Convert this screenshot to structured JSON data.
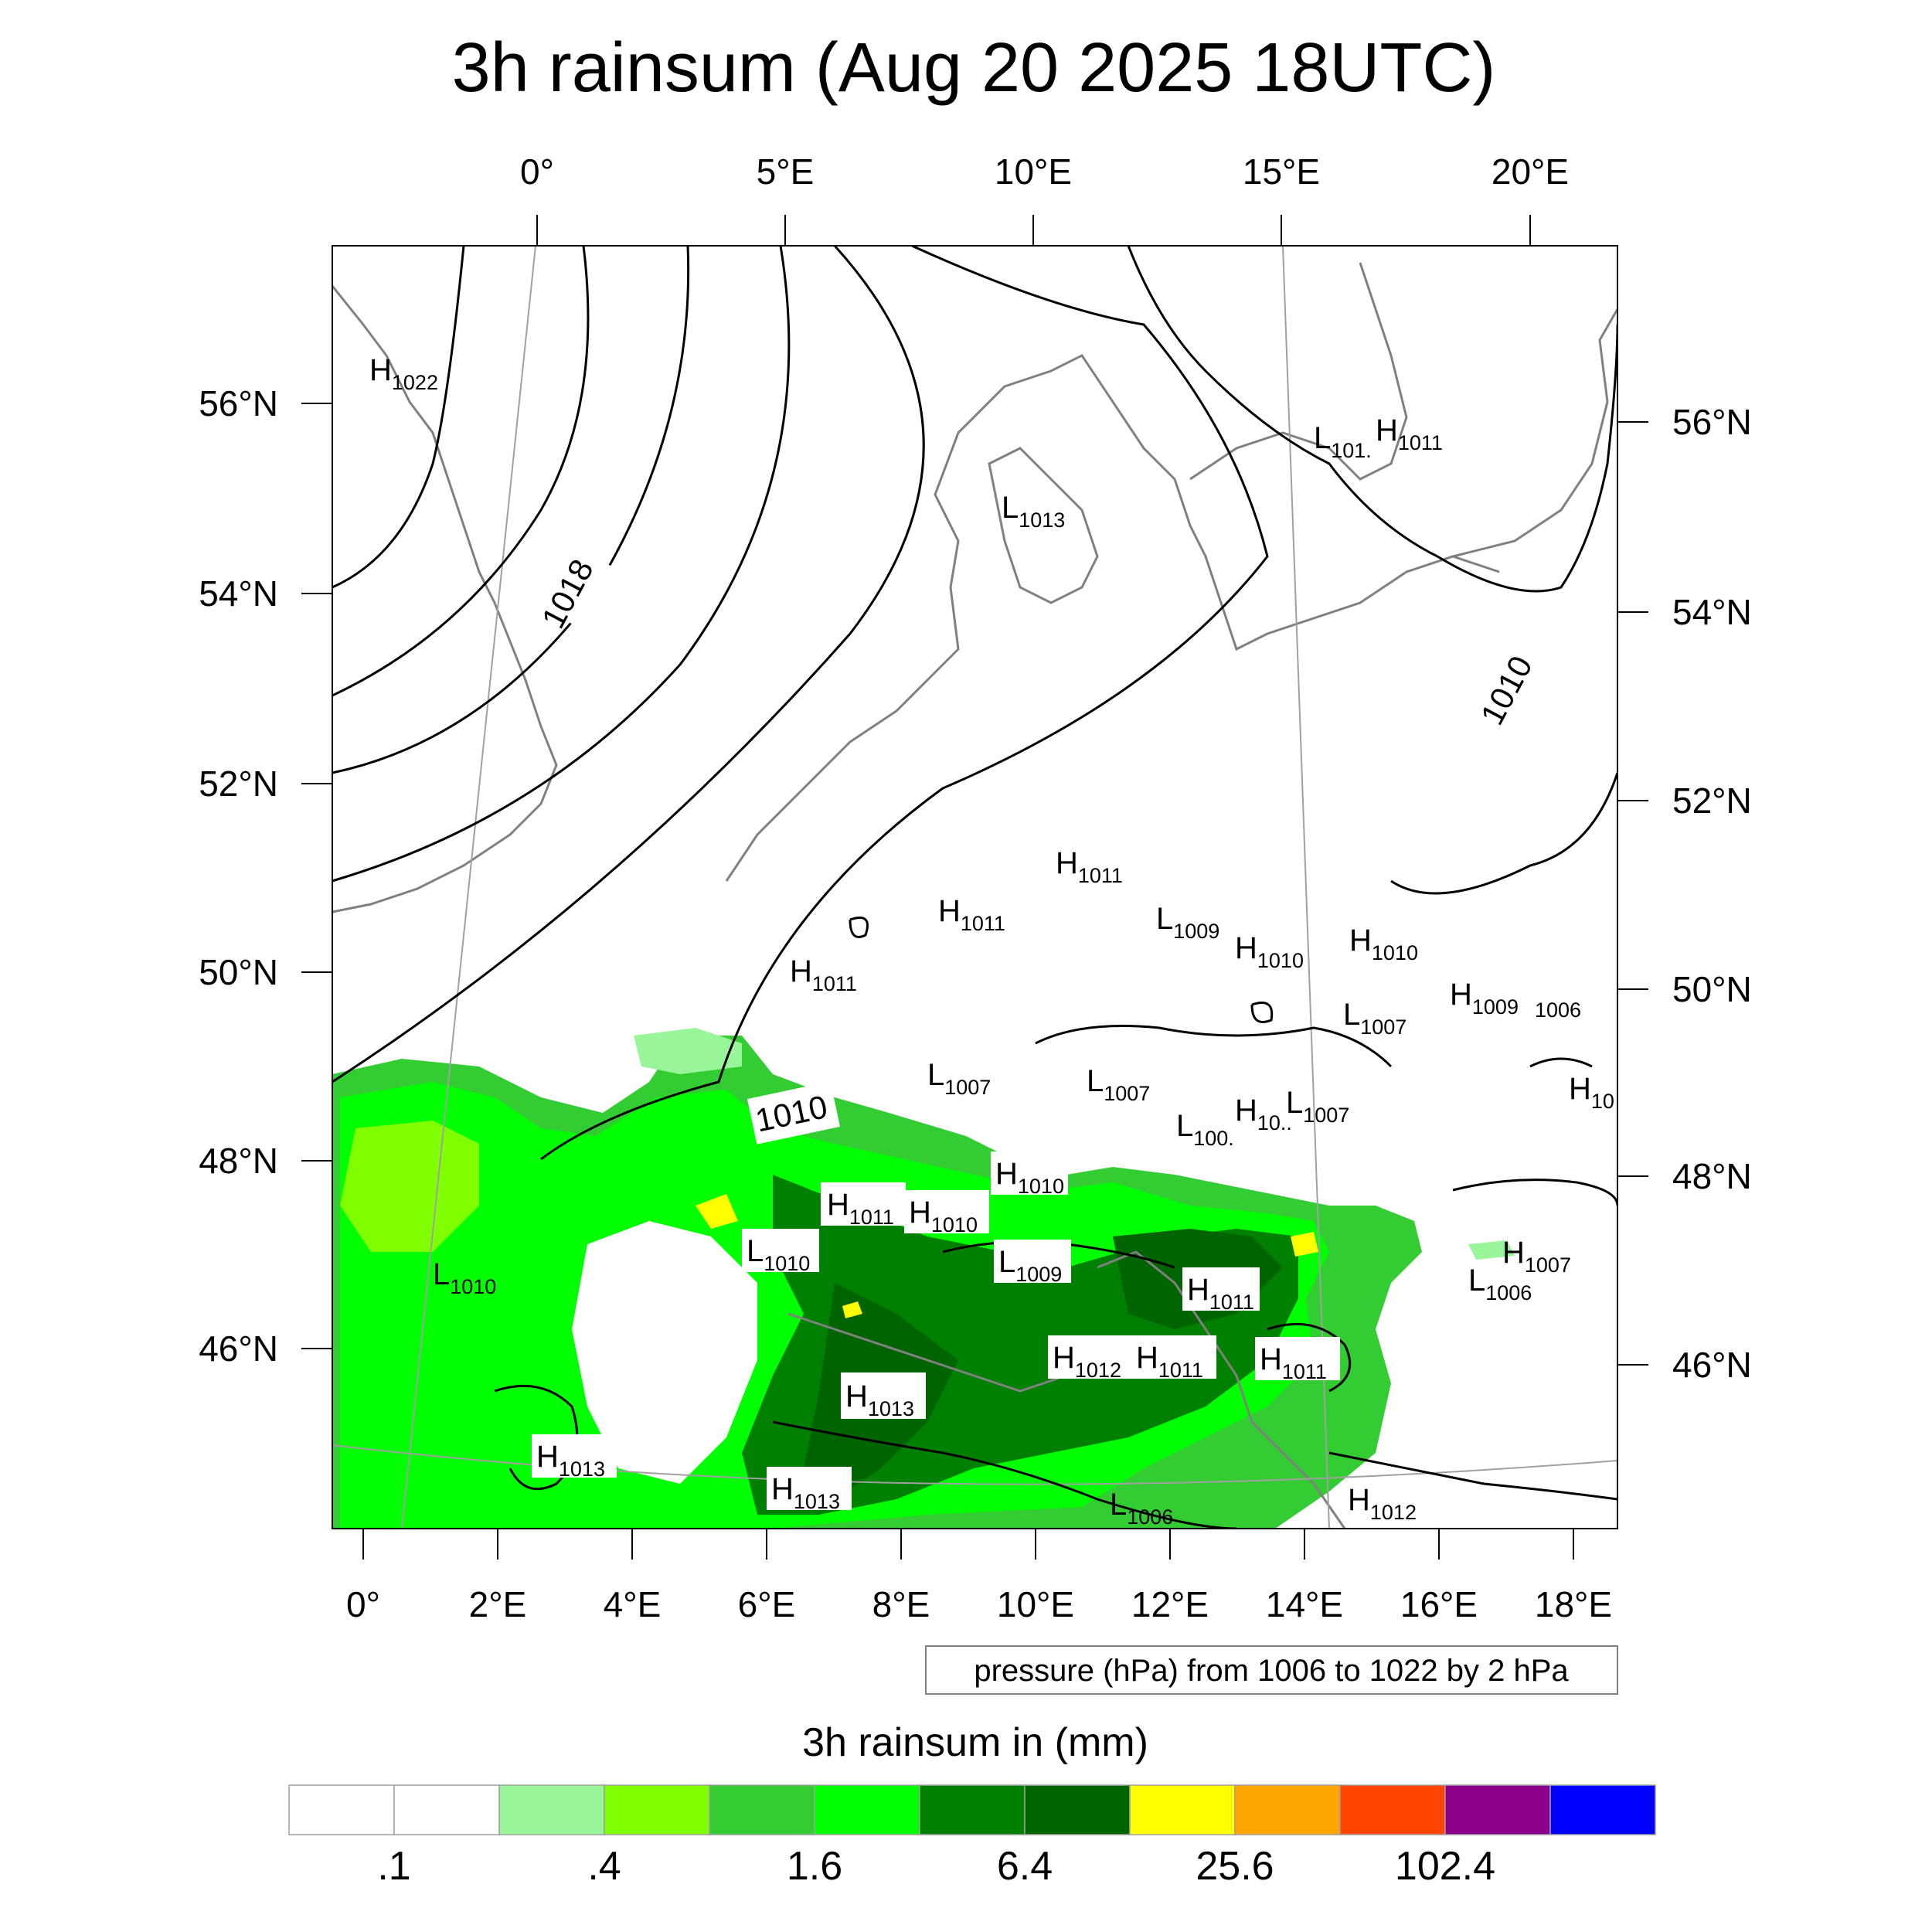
{
  "title": "3h rainsum (Aug 20 2025 18UTC)",
  "top_lon_labels": [
    "0°",
    "5°E",
    "10°E",
    "15°E",
    "20°E"
  ],
  "bottom_lon_labels": [
    "0°",
    "2°E",
    "4°E",
    "6°E",
    "8°E",
    "10°E",
    "12°E",
    "14°E",
    "16°E",
    "18°E"
  ],
  "left_lat_labels": [
    "56°N",
    "54°N",
    "52°N",
    "50°N",
    "48°N",
    "46°N"
  ],
  "right_lat_labels": [
    "56°N",
    "54°N",
    "52°N",
    "50°N",
    "48°N",
    "46°N"
  ],
  "contour_info": "pressure (hPa) from 1006 to 1022 by 2 hPa",
  "colorbar": {
    "title": "3h rainsum in (mm)",
    "labels": [
      ".1",
      ".4",
      "1.6",
      "6.4",
      "25.6",
      "102.4"
    ],
    "colors": [
      "#ffffff",
      "#ffffff",
      "#99f599",
      "#80ff00",
      "#33cc33",
      "#00ff00",
      "#008000",
      "#006400",
      "#ffff00",
      "#ffa500",
      "#ff4500",
      "#8b008b",
      "#0000ff"
    ]
  },
  "contour_labels": [
    "1018",
    "1010",
    "1010"
  ],
  "pressure_centers": [
    {
      "type": "H",
      "value": "1022"
    },
    {
      "type": "L",
      "value": "1013"
    },
    {
      "type": "L",
      "value": "101."
    },
    {
      "type": "H",
      "value": "1011"
    },
    {
      "type": "H",
      "value": "1011"
    },
    {
      "type": "H",
      "value": "1011"
    },
    {
      "type": "H",
      "value": "1011"
    },
    {
      "type": "L",
      "value": "1009"
    },
    {
      "type": "H",
      "value": "1010"
    },
    {
      "type": "H",
      "value": "1010"
    },
    {
      "type": "L",
      "value": "1007"
    },
    {
      "type": "H",
      "value": "1009"
    },
    {
      "type": "L",
      "value": "1007"
    },
    {
      "type": "L",
      "value": "1007"
    },
    {
      "type": "L",
      "value": "100."
    },
    {
      "type": "H",
      "value": "10.."
    },
    {
      "type": "L",
      "value": "1007"
    },
    {
      "type": "H",
      "value": "1010"
    },
    {
      "type": "H",
      "value": "1011"
    },
    {
      "type": "H",
      "value": "1010"
    },
    {
      "type": "L",
      "value": "1010"
    },
    {
      "type": "L",
      "value": "1009"
    },
    {
      "type": "L",
      "value": "1010"
    },
    {
      "type": "H",
      "value": "1011"
    },
    {
      "type": "H",
      "value": "1007"
    },
    {
      "type": "L",
      "value": "1006"
    },
    {
      "type": "H",
      "value": "1012"
    },
    {
      "type": "H",
      "value": "1011"
    },
    {
      "type": "H",
      "value": "1011"
    },
    {
      "type": "H",
      "value": "1013"
    },
    {
      "type": "H",
      "value": "1013"
    },
    {
      "type": "H",
      "value": "1013"
    },
    {
      "type": "L",
      "value": "1006"
    },
    {
      "type": "H",
      "value": "1012"
    },
    {
      "type": "H",
      "value": "10"
    }
  ],
  "side_label": "1006"
}
